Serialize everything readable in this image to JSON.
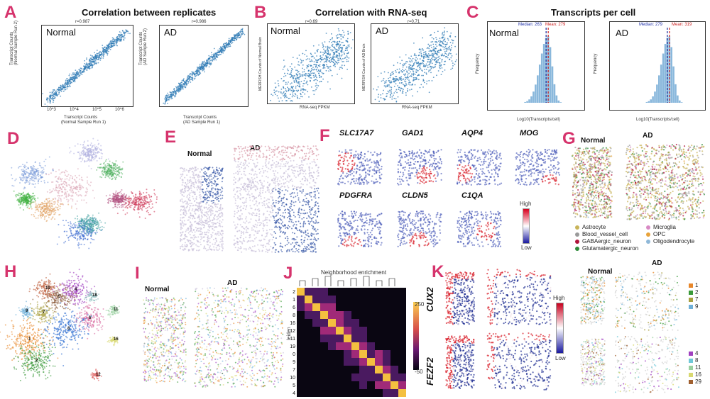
{
  "panels": {
    "A": {
      "letter": "A",
      "title": "Correlation between replicates",
      "left": {
        "r": "r=0.987",
        "label": "Normal",
        "xlabel1": "Transcript Counts",
        "xlabel2": "(Normal Sample Run 1)",
        "ylabel1": "Transcript Counts",
        "ylabel2": "(Normal Sample Run 2)"
      },
      "right": {
        "r": "r=0.986",
        "label": "AD",
        "xlabel1": "Transcript Counts",
        "xlabel2": "(AD Sample Run 1)",
        "ylabel1": "Transcript Counts",
        "ylabel2": "(AD Sample Run 2)"
      },
      "ticks": [
        "10^3",
        "10^4",
        "10^5",
        "10^6"
      ]
    },
    "B": {
      "letter": "B",
      "title": "Correlation with RNA-seq",
      "left": {
        "r": "r=0.69",
        "label": "Normal",
        "xlabel": "RNA-seq FPKM",
        "ylabel": "MERFISH Counts of Normal Brain"
      },
      "right": {
        "r": "r=0.71",
        "label": "AD",
        "xlabel": "RNA-seq FPKM",
        "ylabel": "MERFISH Counts of AD Brain"
      }
    },
    "C": {
      "letter": "C",
      "title": "Transcripts per cell",
      "left": {
        "label": "Normal",
        "median": "Median: 263",
        "mean": "Mean: 279",
        "xlabel": "Log10(Transcripts/cell)",
        "ylabel": "Frequency",
        "yticks": [
          "0",
          "1000",
          "2000",
          "3000",
          "4000",
          "5000",
          "6000"
        ]
      },
      "right": {
        "label": "AD",
        "median": "Median: 279",
        "mean": "Mean: 319",
        "xlabel": "Log10(Transcripts/cell)",
        "ylabel": "Frequency",
        "yticks": [
          "0",
          "2000",
          "4000",
          "6000",
          "8000",
          "10000",
          "12000"
        ]
      },
      "xticks": [
        "0.0",
        "0.5",
        "1.0",
        "1.5",
        "2.0",
        "2.5",
        "3.0",
        "3.5",
        "4.0"
      ]
    },
    "D": {
      "letter": "D"
    },
    "E": {
      "letter": "E",
      "normal": "Normal",
      "ad": "AD"
    },
    "F": {
      "letter": "F",
      "genes_row1": [
        "SLC17A7",
        "GAD1",
        "AQP4",
        "MOG"
      ],
      "genes_row2": [
        "PDGFRA",
        "CLDN5",
        "C1QA"
      ],
      "colorbar_high": "High",
      "colorbar_low": "Low"
    },
    "G": {
      "letter": "G",
      "normal": "Normal",
      "ad": "AD",
      "legend": [
        {
          "label": "Astrocyte",
          "color": "#c8b45a"
        },
        {
          "label": "Blood_vessel_cell",
          "color": "#9a9a9a"
        },
        {
          "label": "GABAergic_neuron",
          "color": "#b0143c"
        },
        {
          "label": "Glutamatergic_neuron",
          "color": "#2e8b3a"
        },
        {
          "label": "Microglia",
          "color": "#d88ac4"
        },
        {
          "label": "OPC",
          "color": "#e8a33a"
        },
        {
          "label": "Oligodendrocyte",
          "color": "#8fb8d8"
        }
      ]
    },
    "H": {
      "letter": "H",
      "clusters": [
        "1",
        "2",
        "4",
        "5",
        "6",
        "7",
        "8",
        "9",
        "10",
        "11",
        "12",
        "16",
        "18"
      ]
    },
    "I": {
      "letter": "I",
      "normal": "Normal",
      "ad": "AD"
    },
    "J": {
      "letter": "J",
      "title": "Neighborhood enrichment",
      "ylabel": "leiden",
      "rows": [
        "2",
        "1",
        "6",
        "8",
        "16",
        "12",
        "11",
        "19",
        "0",
        "9",
        "7",
        "10",
        "5",
        "4"
      ],
      "cbar_max": "250",
      "cbar_min": "-50"
    },
    "K": {
      "letter": "K",
      "genes": [
        "CUX2",
        "FEZF2"
      ],
      "colorbar_high": "High",
      "colorbar_low": "Low",
      "normal": "Normal",
      "ad": "AD",
      "legend_top": [
        {
          "label": "1",
          "color": "#e8872a"
        },
        {
          "label": "2",
          "color": "#3a9a3a"
        },
        {
          "label": "7",
          "color": "#a8a040"
        },
        {
          "label": "9",
          "color": "#6fb0d8"
        }
      ],
      "legend_bottom": [
        {
          "label": "4",
          "color": "#a040c0"
        },
        {
          "label": "8",
          "color": "#6fc8d8"
        },
        {
          "label": "11",
          "color": "#9ad0a0"
        },
        {
          "label": "16",
          "color": "#d8d870"
        },
        {
          "label": "29",
          "color": "#a06030"
        }
      ]
    }
  }
}
